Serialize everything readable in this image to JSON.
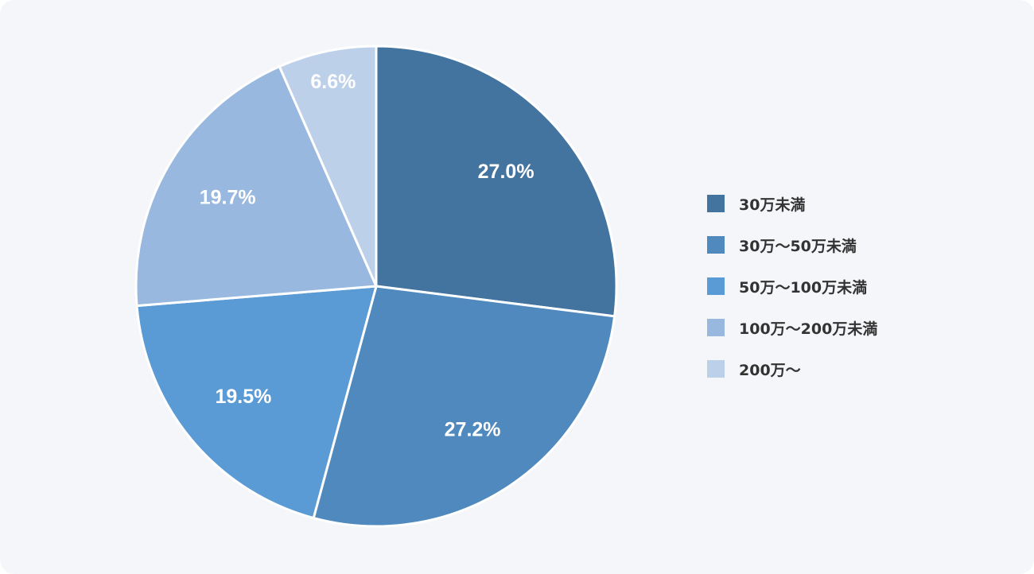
{
  "chart_data": {
    "type": "pie",
    "title": "",
    "start_angle_deg": 0,
    "direction": "clockwise",
    "legend_position": "right",
    "slices": [
      {
        "label": "30万未満",
        "value": 27.0,
        "value_label": "27.0%",
        "color": "#43739f"
      },
      {
        "label": "30万～50万未満",
        "value": 27.2,
        "value_label": "27.2%",
        "color": "#4f89bd"
      },
      {
        "label": "50万～100万未満",
        "value": 19.5,
        "value_label": "19.5%",
        "color": "#5a9ad5"
      },
      {
        "label": "100万～200万未満",
        "value": 19.7,
        "value_label": "19.7%",
        "color": "#98b8df"
      },
      {
        "label": "200万～",
        "value": 6.6,
        "value_label": "6.6%",
        "color": "#bdd0ea"
      }
    ]
  }
}
